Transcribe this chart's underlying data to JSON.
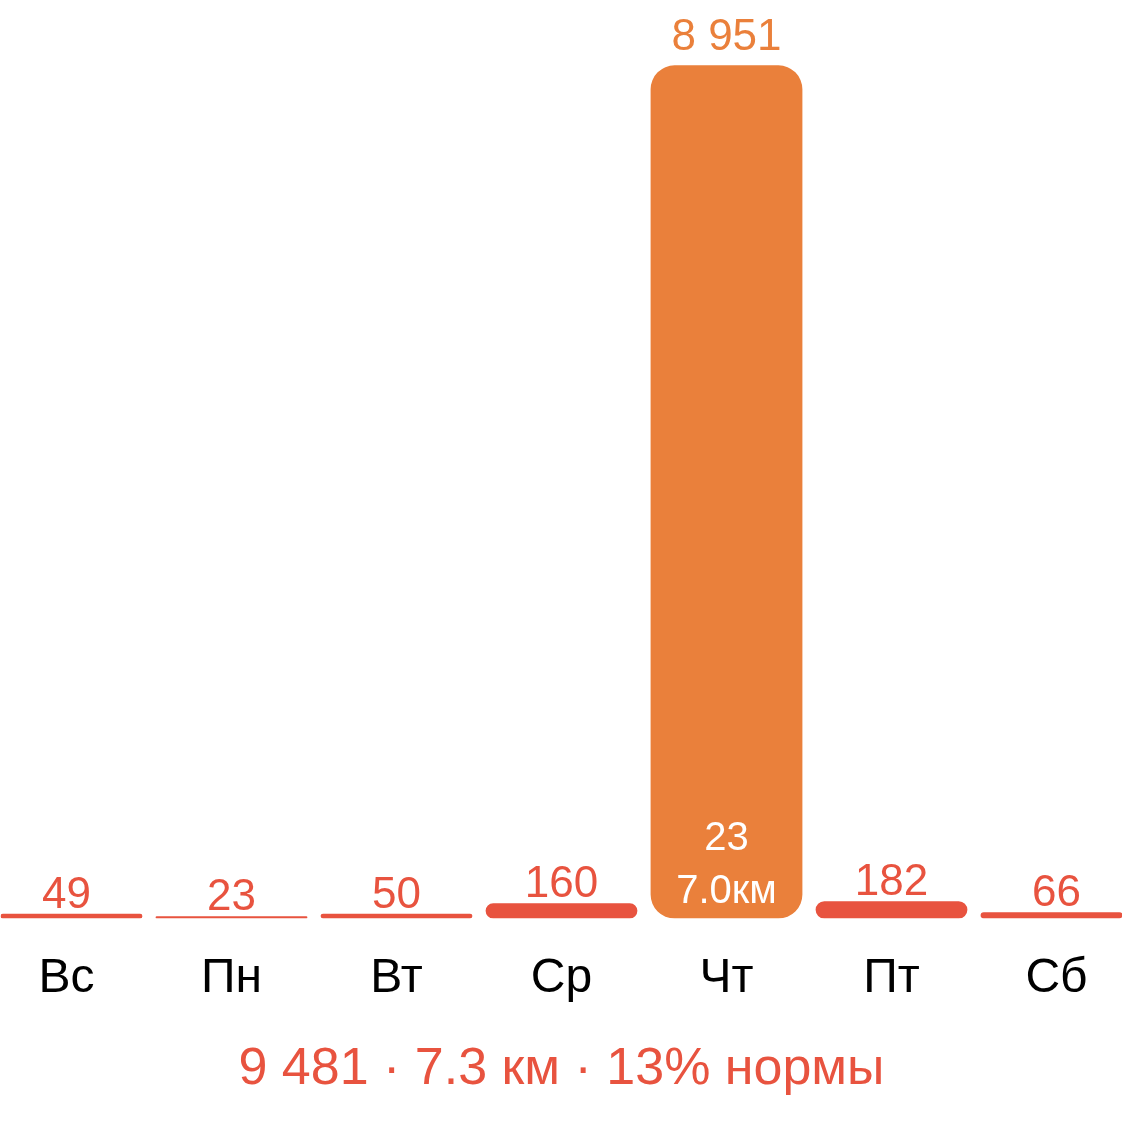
{
  "chart_data": {
    "type": "bar",
    "categories": [
      "Вс",
      "Пн",
      "Вт",
      "Ср",
      "Чт",
      "Пт",
      "Сб"
    ],
    "values": [
      49,
      23,
      50,
      160,
      8951,
      182,
      66
    ],
    "colors": [
      "#e8533f",
      "#e8533f",
      "#e8533f",
      "#e8533f",
      "#ea803b",
      "#e8533f",
      "#e8533f"
    ],
    "value_labels": [
      "49",
      "23",
      "50",
      "160",
      "8 951",
      "182",
      "66"
    ],
    "annotations": [
      "23",
      "7.0км",
      "9 481 · 7.3 км · 13% нормы"
    ],
    "tick_labels": "x"
  }
}
